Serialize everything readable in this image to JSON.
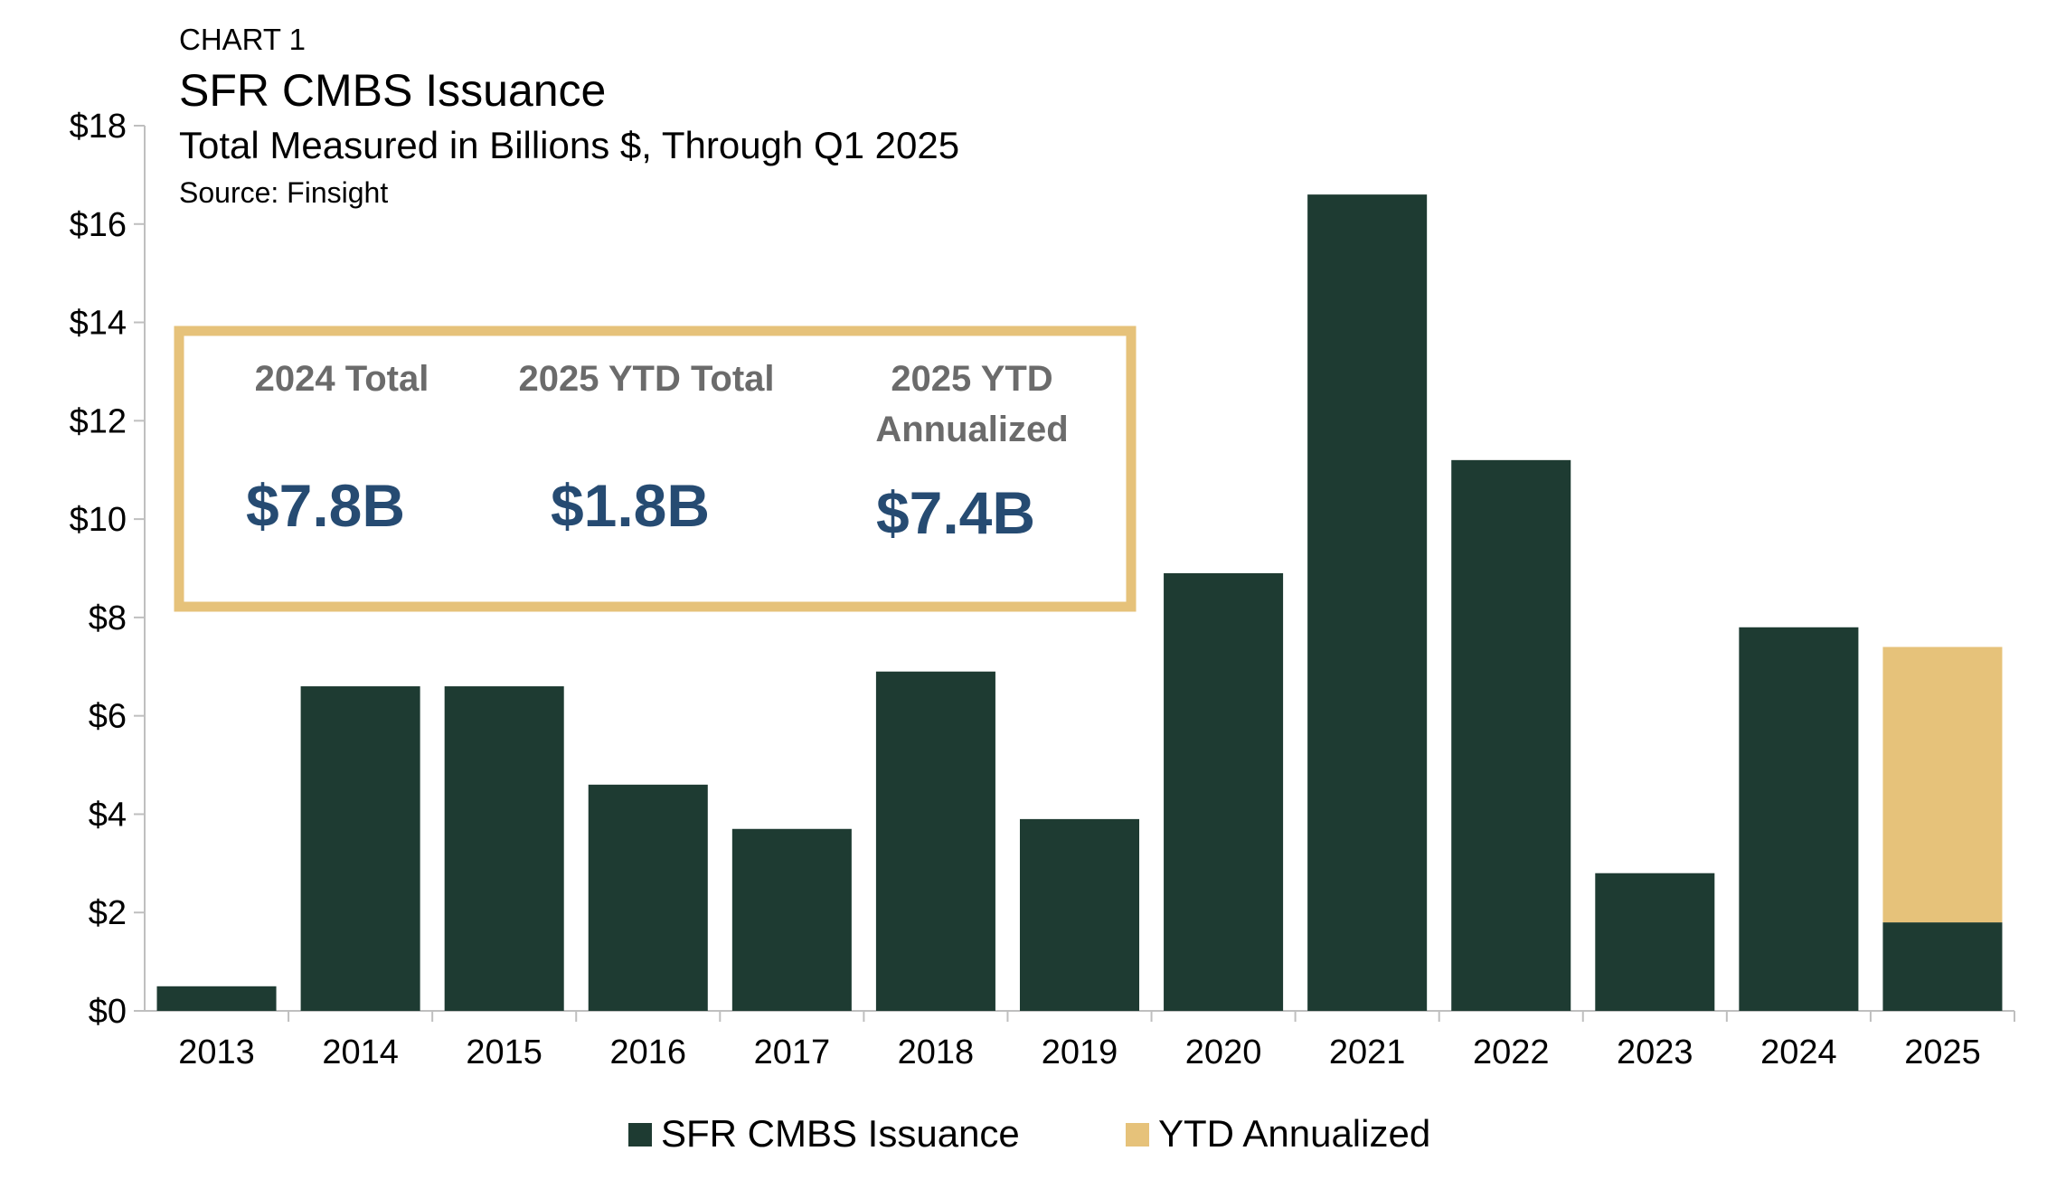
{
  "header": {
    "kicker": "CHART 1",
    "title": "SFR CMBS Issuance",
    "subtitle": "Total Measured in Billions $, Through Q1 2025",
    "source": "Source: Finsight"
  },
  "stats_box": {
    "border_color": "#e6c27a",
    "items": [
      {
        "label_lines": [
          "2024 Total"
        ],
        "value": "$7.8B"
      },
      {
        "label_lines": [
          "2025 YTD Total"
        ],
        "value": "$1.8B"
      },
      {
        "label_lines": [
          "2025 YTD",
          "Annualized"
        ],
        "value": "$7.4B"
      }
    ]
  },
  "colors": {
    "issuance": "#1e3b32",
    "ytd_annualized": "#e6c27a",
    "stat_label": "#6b6b6b",
    "stat_value": "#264b72"
  },
  "chart_data": {
    "type": "bar",
    "stacked": true,
    "title": "SFR CMBS Issuance",
    "subtitle": "Total Measured in Billions $, Through Q1 2025",
    "xlabel": "",
    "ylabel": "",
    "categories": [
      "2013",
      "2014",
      "2015",
      "2016",
      "2017",
      "2018",
      "2019",
      "2020",
      "2021",
      "2022",
      "2023",
      "2024",
      "2025"
    ],
    "series": [
      {
        "name": "SFR CMBS Issuance",
        "color": "#1e3b32",
        "values": [
          0.5,
          6.6,
          6.6,
          4.6,
          3.7,
          6.9,
          3.9,
          8.9,
          16.6,
          11.2,
          2.8,
          7.8,
          1.8
        ]
      },
      {
        "name": "YTD Annualized",
        "color": "#e6c27a",
        "values": [
          0,
          0,
          0,
          0,
          0,
          0,
          0,
          0,
          0,
          0,
          0,
          0,
          5.6
        ]
      }
    ],
    "ylim": [
      0,
      18
    ],
    "yticks": [
      0,
      2,
      4,
      6,
      8,
      10,
      12,
      14,
      16,
      18
    ],
    "ytick_labels": [
      "$0",
      "$2",
      "$4",
      "$6",
      "$8",
      "$10",
      "$12",
      "$14",
      "$16",
      "$18"
    ],
    "grid": false,
    "legend_position": "bottom"
  }
}
